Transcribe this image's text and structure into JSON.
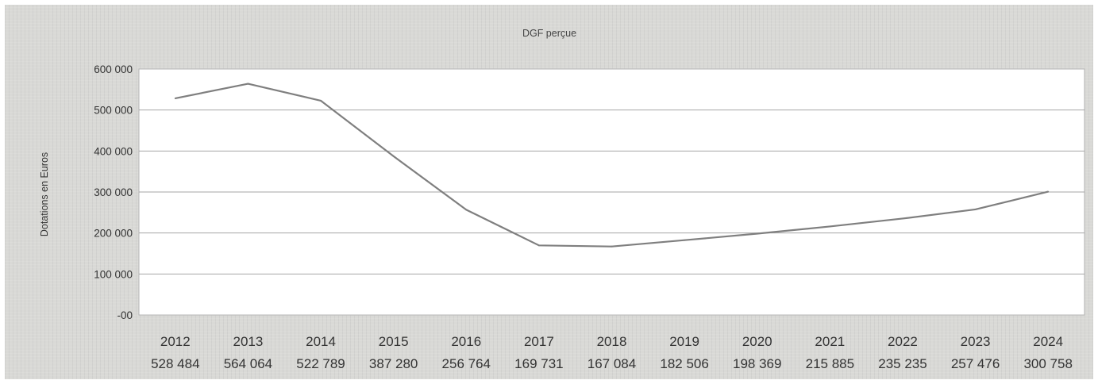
{
  "chart_data": {
    "type": "line",
    "title": "DGF perçue",
    "ylabel": "Dotations en Euros",
    "xlabel": "",
    "ylim": [
      0,
      600000
    ],
    "grid": true,
    "y_ticks": [
      "600 000",
      "500 000",
      "400 000",
      "300 000",
      "200 000",
      "100 000",
      "-00"
    ],
    "y_tick_values": [
      600000,
      500000,
      400000,
      300000,
      200000,
      100000,
      0
    ],
    "categories": [
      "2012",
      "2013",
      "2014",
      "2015",
      "2016",
      "2017",
      "2018",
      "2019",
      "2020",
      "2021",
      "2022",
      "2023",
      "2024"
    ],
    "value_labels": [
      "528 484",
      "564 064",
      "522 789",
      "387 280",
      "256 764",
      "169 731",
      "167 084",
      "182 506",
      "198 369",
      "215 885",
      "235 235",
      "257 476",
      "300 758"
    ],
    "series": [
      {
        "values": [
          528484,
          564064,
          522789,
          387280,
          256764,
          169731,
          167084,
          182506,
          198369,
          215885,
          235235,
          257476,
          300758
        ],
        "color": "#7f7f7f"
      }
    ]
  }
}
